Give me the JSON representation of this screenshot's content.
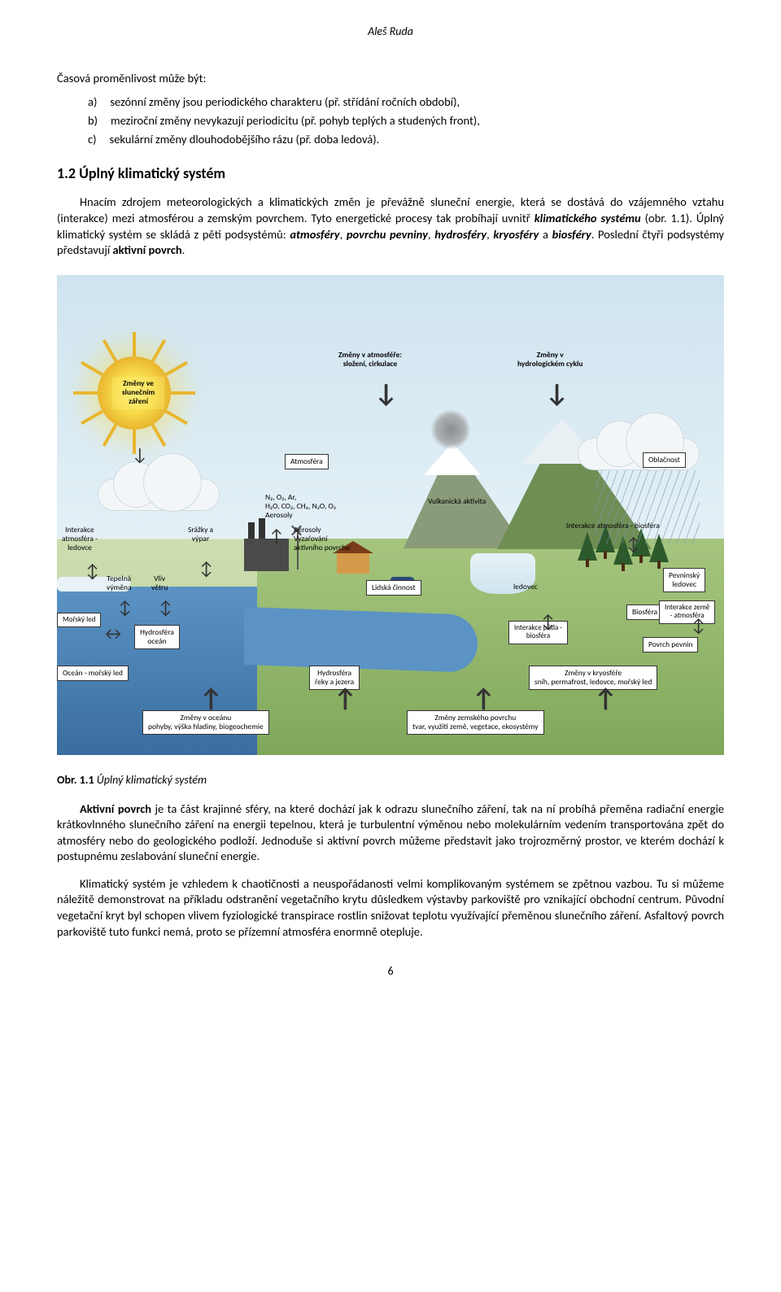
{
  "author": "Aleš Ruda",
  "intro": "Časová proměnlivost může být:",
  "list": [
    {
      "letter": "a)",
      "text": "sezónní změny jsou periodického charakteru (př. střídání ročních období),"
    },
    {
      "letter": "b)",
      "text": "meziroční změny nevykazují periodicitu (př. pohyb teplých a studených front),"
    },
    {
      "letter": "c)",
      "text": "sekulární změny dlouhodobějšího rázu (př. doba ledová)."
    }
  ],
  "h2": "1.2 Úplný klimatický systém",
  "para1a": "Hnacím zdrojem meteorologických a klimatických změn je převážně sluneční energie, která se dostává do vzájemného vztahu (interakce) mezi atmosférou a zemským povrchem. Tyto energetické procesy tak probíhají uvnitř ",
  "para1b": "klimatického systému",
  "para1c": " (obr. 1.1). Úplný klimatický systém se skládá z pěti podsystémů: ",
  "para1d": "atmosféry",
  "para1e": ", ",
  "para1f": "povrchu pevniny",
  "para1g": ", ",
  "para1h": "hydrosféry",
  "para1i": ", ",
  "para1j": "kryosféry",
  "para1k": " a ",
  "para1l": "biosféry",
  "para1m": ". Poslední čtyři podsystémy představují ",
  "para1n": "aktivní povrch",
  "para1o": ".",
  "diagram": {
    "sun": "Změny ve slunečním záření",
    "atmos_change": "Změny v atmosféře:\nsložení, cirkulace",
    "hydro_cycle": "Změny v\nhydrologickém cyklu",
    "atmosfera": "Atmosféra",
    "oblacnost": "Oblačnost",
    "gases": "N₂, O₂, Ar,\nH₂O, CO₂, CH₄, N₂O, O₃\nAerosoly",
    "vulkan": "Vulkanická aktivita",
    "interakce_led": "Interakce\natmosféra -\nledovce",
    "srazky": "Srážky a\nvýpar",
    "aerosoly2": "Aerosoly\nVyzařování\naktivního povrchu",
    "inter_bio": "Interakce atmosféra - biosféra",
    "tepelna": "Tepelná\nvýměna",
    "vitr": "Vliv\nvětru",
    "lidska": "Lidská činnost",
    "ledovec": "ledovec",
    "pevninsky": "Pevninský\nledovec",
    "biosfera": "Biosféra",
    "inter_zeme": "Interakce země\n- atmosféra",
    "morsky": "Mořský led",
    "hydro_ocean": "Hydrosféra\noceán",
    "inter_puda": "Interakce půda -\nbiosféra",
    "povrch": "Povrch pevnin",
    "ocean_led": "Oceán - mořský led",
    "hydro_reky": "Hydrosféra\nřeky a jezera",
    "kryo": "Změny v kryosféře\nsníh, permafrost, ledovce, mořský led",
    "ocean_zmeny": "Změny v oceánu\npohyby, výška hladiny, biogeochemie",
    "zemsky": "Změny zemského povrchu\ntvar, využití země, vegetace, ekosystémy"
  },
  "caption_b": "Obr. 1.1",
  "caption_i": " Úplný klimatický systém",
  "para2a": "Aktivní povrch",
  "para2b": " je ta část krajinné sféry, na které dochází jak k odrazu slunečního záření, tak na ní probíhá přeměna radiační energie krátkovlnného slunečního záření na energii tepelnou, která je turbulentní výměnou nebo molekulárním vedením transportována zpět do atmosféry nebo do geologického podloží. Jednoduše si aktivní povrch můžeme představit jako trojrozměrný prostor, ve kterém dochází k postupnému zeslabování sluneční energie.",
  "para3": "Klimatický systém je vzhledem k chaotičnosti a neuspořádanosti velmi komplikovaným systémem se zpětnou vazbou. Tu si můžeme náležitě demonstrovat na příkladu odstranění vegetačního krytu důsledkem výstavby parkoviště pro vznikající obchodní centrum. Původní vegetační kryt byl schopen vlivem fyziologické transpirace rostlin snižovat teplotu využívající přeměnou slunečního záření. Asfaltový povrch parkoviště tuto funkci nemá, proto se přízemní atmosféra enormně otepluje.",
  "pagenum": "6"
}
